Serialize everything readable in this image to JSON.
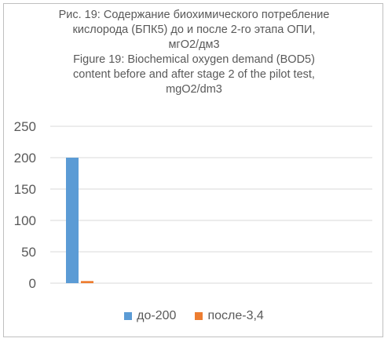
{
  "chart_data": {
    "type": "bar",
    "title_lines": [
      "Рис. 19: Содержание биохимического потребление",
      "кислорода (БПК5) до и после 2-го этапа ОПИ,",
      "мгО2/дм3",
      "Figure 19: Biochemical oxygen demand (BOD5)",
      "content before and after stage 2 of the pilot test,",
      "mgO2/dm3"
    ],
    "categories": [
      ""
    ],
    "series": [
      {
        "name": "до-200",
        "values": [
          200
        ],
        "color": "#5b9bd5"
      },
      {
        "name": "после-3,4",
        "values": [
          3.4
        ],
        "color": "#ed7d31"
      }
    ],
    "ylim": [
      0,
      250
    ],
    "yticks": [
      "0",
      "50",
      "100",
      "150",
      "200",
      "250"
    ],
    "grid": true,
    "legend_position": "bottom"
  }
}
